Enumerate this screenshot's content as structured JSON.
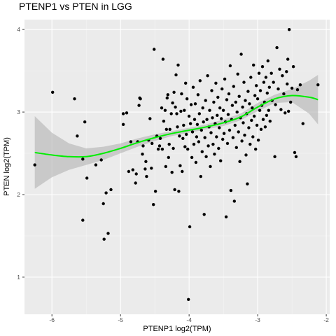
{
  "chart_data": {
    "type": "scatter",
    "title": "PTENP1 vs  PTEN in LGG",
    "xlabel": "PTENP1 log2(TPM)",
    "ylabel": "PTEN log2(TPM)",
    "xlim": [
      -6.4,
      -1.95
    ],
    "ylim": [
      0.55,
      4.12
    ],
    "xticks": [
      -6,
      -5,
      -4,
      -3,
      -2
    ],
    "yticks": [
      1,
      2,
      3,
      4
    ],
    "xtick_labels": [
      "-6",
      "-5",
      "-4",
      "-3",
      "-2"
    ],
    "ytick_labels": [
      "1",
      "2",
      "3",
      "4"
    ],
    "grid": true,
    "panel_background": "#ebebeb",
    "point_color": "#000000",
    "smooth_color": "#00ee00",
    "ribbon_color": "#b3b3b3",
    "points": [
      [
        -6.25,
        2.36
      ],
      [
        -5.99,
        3.24
      ],
      [
        -5.67,
        3.16
      ],
      [
        -5.63,
        2.71
      ],
      [
        -5.55,
        2.43
      ],
      [
        -5.55,
        1.69
      ],
      [
        -5.52,
        2.88
      ],
      [
        -5.49,
        2.2
      ],
      [
        -5.36,
        2.36
      ],
      [
        -5.28,
        2.42
      ],
      [
        -5.25,
        1.89
      ],
      [
        -5.24,
        1.46
      ],
      [
        -5.21,
        2.02
      ],
      [
        -5.18,
        1.53
      ],
      [
        -5.14,
        2.06
      ],
      [
        -4.96,
        2.98
      ],
      [
        -4.96,
        2.85
      ],
      [
        -4.91,
        2.99
      ],
      [
        -4.88,
        2.28
      ],
      [
        -4.85,
        2.64
      ],
      [
        -4.82,
        2.3
      ],
      [
        -4.78,
        2.14
      ],
      [
        -4.77,
        2.25
      ],
      [
        -4.75,
        2.64
      ],
      [
        -4.73,
        3.08
      ],
      [
        -4.72,
        3.17
      ],
      [
        -4.71,
        3.16
      ],
      [
        -4.68,
        2.49
      ],
      [
        -4.67,
        2.59
      ],
      [
        -4.64,
        2.31
      ],
      [
        -4.63,
        2.4
      ],
      [
        -4.62,
        2.22
      ],
      [
        -4.59,
        2.66
      ],
      [
        -4.57,
        2.92
      ],
      [
        -4.55,
        2.32
      ],
      [
        -4.54,
        2.62
      ],
      [
        -4.52,
        1.88
      ],
      [
        -4.51,
        3.76
      ],
      [
        -4.49,
        2.04
      ],
      [
        -4.47,
        2.71
      ],
      [
        -4.45,
        2.55
      ],
      [
        -4.43,
        2.59
      ],
      [
        -4.42,
        2.68
      ],
      [
        -4.4,
        3.05
      ],
      [
        -4.39,
        2.55
      ],
      [
        -4.38,
        3.64
      ],
      [
        -4.37,
        2.89
      ],
      [
        -4.35,
        3.02
      ],
      [
        -4.34,
        2.34
      ],
      [
        -4.33,
        2.79
      ],
      [
        -4.32,
        3.17
      ],
      [
        -4.31,
        3.21
      ],
      [
        -4.3,
        2.45
      ],
      [
        -4.29,
        2.61
      ],
      [
        -4.28,
        2.79
      ],
      [
        -4.26,
        2.98
      ],
      [
        -4.25,
        2.27
      ],
      [
        -4.24,
        3.11
      ],
      [
        -4.23,
        2.56
      ],
      [
        -4.22,
        3.24
      ],
      [
        -4.21,
        2.06
      ],
      [
        -4.2,
        3.06
      ],
      [
        -4.19,
        3.45
      ],
      [
        -4.18,
        2.98
      ],
      [
        -4.17,
        2.82
      ],
      [
        -4.16,
        3.57
      ],
      [
        -4.15,
        2.04
      ],
      [
        -4.14,
        2.71
      ],
      [
        -4.13,
        2.35
      ],
      [
        -4.12,
        3.01
      ],
      [
        -4.11,
        3.22
      ],
      [
        -4.1,
        2.28
      ],
      [
        -4.09,
        2.68
      ],
      [
        -4.08,
        2.84
      ],
      [
        -4.07,
        3.02
      ],
      [
        -4.06,
        2.58
      ],
      [
        -4.05,
        3.35
      ],
      [
        -4.04,
        2.73
      ],
      [
        -4.03,
        3.16
      ],
      [
        -4.02,
        2.55
      ],
      [
        -4.01,
        0.73
      ],
      [
        -4.0,
        2.95
      ],
      [
        -3.99,
        1.61
      ],
      [
        -3.98,
        2.86
      ],
      [
        -3.97,
        3.09
      ],
      [
        -3.96,
        2.45
      ],
      [
        -3.95,
        2.76
      ],
      [
        -3.94,
        3.3
      ],
      [
        -3.93,
        2.61
      ],
      [
        -3.92,
        2.91
      ],
      [
        -3.91,
        3.1
      ],
      [
        -3.9,
        2.39
      ],
      [
        -3.89,
        2.7
      ],
      [
        -3.88,
        2.85
      ],
      [
        -3.87,
        3.21
      ],
      [
        -3.86,
        2.64
      ],
      [
        -3.85,
        2.98
      ],
      [
        -3.84,
        3.38
      ],
      [
        -3.83,
        2.22
      ],
      [
        -3.82,
        2.78
      ],
      [
        -3.81,
        2.52
      ],
      [
        -3.8,
        3.05
      ],
      [
        -3.79,
        2.88
      ],
      [
        -3.78,
        1.76
      ],
      [
        -3.77,
        2.69
      ],
      [
        -3.76,
        3.14
      ],
      [
        -3.75,
        2.46
      ],
      [
        -3.74,
        2.91
      ],
      [
        -3.73,
        3.44
      ],
      [
        -3.72,
        2.59
      ],
      [
        -3.71,
        2.82
      ],
      [
        -3.7,
        3.02
      ],
      [
        -3.69,
        2.34
      ],
      [
        -3.68,
        2.75
      ],
      [
        -3.67,
        3.26
      ],
      [
        -3.66,
        2.93
      ],
      [
        -3.65,
        2.61
      ],
      [
        -3.64,
        3.12
      ],
      [
        -3.63,
        2.49
      ],
      [
        -3.62,
        2.86
      ],
      [
        -3.61,
        3.35
      ],
      [
        -3.6,
        2.7
      ],
      [
        -3.59,
        2.96
      ],
      [
        -3.58,
        3.18
      ],
      [
        -3.57,
        2.56
      ],
      [
        -3.56,
        2.81
      ],
      [
        -3.55,
        3.05
      ],
      [
        -3.54,
        2.41
      ],
      [
        -3.53,
        2.92
      ],
      [
        -3.52,
        3.28
      ],
      [
        -3.51,
        2.67
      ],
      [
        -3.5,
        3.02
      ],
      [
        -3.49,
        2.74
      ],
      [
        -3.48,
        3.4
      ],
      [
        -3.47,
        2.88
      ],
      [
        -3.46,
        1.73
      ],
      [
        -3.45,
        3.15
      ],
      [
        -3.44,
        2.62
      ],
      [
        -3.43,
        2.97
      ],
      [
        -3.42,
        3.22
      ],
      [
        -3.41,
        2.78
      ],
      [
        -3.4,
        3.56
      ],
      [
        -3.39,
        2.05
      ],
      [
        -3.38,
        2.91
      ],
      [
        -3.37,
        3.08
      ],
      [
        -3.36,
        2.69
      ],
      [
        -3.35,
        3.31
      ],
      [
        -3.34,
        1.92
      ],
      [
        -3.33,
        2.84
      ],
      [
        -3.32,
        3.12
      ],
      [
        -3.31,
        2.57
      ],
      [
        -3.3,
        3.0
      ],
      [
        -3.29,
        3.46
      ],
      [
        -3.28,
        2.76
      ],
      [
        -3.27,
        3.19
      ],
      [
        -3.26,
        2.4
      ],
      [
        -3.25,
        2.93
      ],
      [
        -3.24,
        3.7
      ],
      [
        -3.23,
        2.65
      ],
      [
        -3.22,
        3.06
      ],
      [
        -3.21,
        2.87
      ],
      [
        -3.2,
        3.36
      ],
      [
        -3.19,
        2.72
      ],
      [
        -3.18,
        3.14
      ],
      [
        -3.17,
        2.48
      ],
      [
        -3.16,
        2.98
      ],
      [
        -3.15,
        2.13
      ],
      [
        -3.14,
        3.25
      ],
      [
        -3.13,
        2.81
      ],
      [
        -3.12,
        3.1
      ],
      [
        -3.11,
        2.61
      ],
      [
        -3.1,
        3.42
      ],
      [
        -3.09,
        2.9
      ],
      [
        -3.08,
        3.05
      ],
      [
        -3.07,
        2.7
      ],
      [
        -3.06,
        3.57
      ],
      [
        -3.05,
        2.95
      ],
      [
        -3.04,
        3.2
      ],
      [
        -3.03,
        2.55
      ],
      [
        -3.02,
        3.32
      ],
      [
        -3.01,
        2.84
      ],
      [
        -3.0,
        3.16
      ],
      [
        -2.99,
        2.66
      ],
      [
        -2.98,
        3.47
      ],
      [
        -2.97,
        3.02
      ],
      [
        -2.96,
        3.26
      ],
      [
        -2.95,
        2.79
      ],
      [
        -2.94,
        3.08
      ],
      [
        -2.93,
        3.55
      ],
      [
        -2.92,
        2.91
      ],
      [
        -2.91,
        3.36
      ],
      [
        -2.9,
        3.12
      ],
      [
        -2.89,
        2.82
      ],
      [
        -2.88,
        3.42
      ],
      [
        -2.87,
        2.96
      ],
      [
        -2.86,
        3.23
      ],
      [
        -2.85,
        3.62
      ],
      [
        -2.84,
        3.02
      ],
      [
        -2.83,
        3.3
      ],
      [
        -2.82,
        2.89
      ],
      [
        -2.8,
        3.47
      ],
      [
        -2.79,
        3.14
      ],
      [
        -2.77,
        3.36
      ],
      [
        -2.75,
        2.46
      ],
      [
        -2.74,
        3.09
      ],
      [
        -2.72,
        3.78
      ],
      [
        -2.7,
        3.28
      ],
      [
        -2.68,
        3.52
      ],
      [
        -2.66,
        3.03
      ],
      [
        -2.64,
        3.44
      ],
      [
        -2.62,
        3.22
      ],
      [
        -2.6,
        2.99
      ],
      [
        -2.58,
        3.49
      ],
      [
        -2.57,
        3.34
      ],
      [
        -2.56,
        3.64
      ],
      [
        -2.55,
        3.01
      ],
      [
        -2.54,
        4.0
      ],
      [
        -2.52,
        3.12
      ],
      [
        -2.5,
        3.29
      ],
      [
        -2.48,
        3.55
      ],
      [
        -2.46,
        2.51
      ],
      [
        -2.44,
        2.46
      ],
      [
        -2.42,
        3.27
      ],
      [
        -2.38,
        3.33
      ],
      [
        -2.34,
        2.86
      ],
      [
        -2.12,
        3.33
      ]
    ],
    "smooth": {
      "x": [
        -6.25,
        -6.0,
        -5.75,
        -5.5,
        -5.25,
        -5.0,
        -4.75,
        -4.5,
        -4.25,
        -4.0,
        -3.75,
        -3.5,
        -3.25,
        -3.0,
        -2.75,
        -2.5,
        -2.25,
        -2.12
      ],
      "y": [
        2.51,
        2.48,
        2.46,
        2.46,
        2.5,
        2.56,
        2.63,
        2.69,
        2.74,
        2.78,
        2.82,
        2.87,
        2.94,
        3.06,
        3.16,
        3.2,
        3.18,
        3.15
      ],
      "lower": [
        2.07,
        2.21,
        2.3,
        2.36,
        2.42,
        2.5,
        2.58,
        2.65,
        2.71,
        2.75,
        2.79,
        2.83,
        2.9,
        3.01,
        3.11,
        3.12,
        2.98,
        2.85
      ],
      "upper": [
        2.95,
        2.75,
        2.62,
        2.56,
        2.58,
        2.62,
        2.68,
        2.73,
        2.77,
        2.81,
        2.85,
        2.91,
        2.98,
        3.11,
        3.21,
        3.28,
        3.38,
        3.45
      ]
    }
  }
}
